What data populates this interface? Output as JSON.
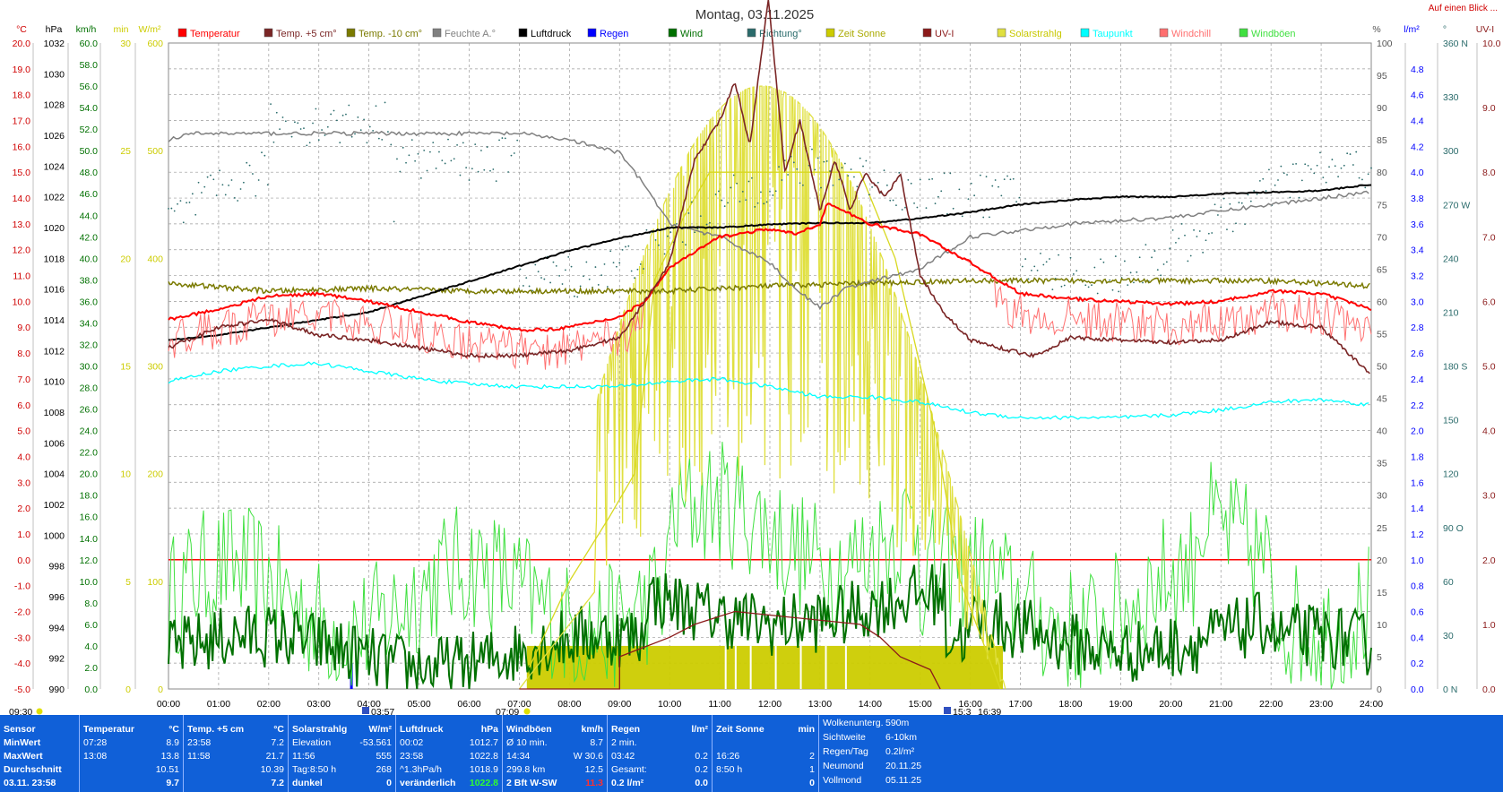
{
  "title": "Montag, 03.11.2025",
  "link_text": "Auf einen Blick ...",
  "colors": {
    "temp": "#ff0000",
    "temp5": "#7a2525",
    "temp10": "#7a7a00",
    "hum": "#808080",
    "press": "#000000",
    "rain": "#0000ff",
    "wind": "#007000",
    "dir": "#2a6b6b",
    "sun": "#cccc00",
    "uv": "#8b1a1a",
    "solar": "#e0e040",
    "dew": "#00ffff",
    "chill": "#ff7070",
    "gust": "#40e040"
  },
  "legend": [
    {
      "label": "Temperatur",
      "color": "#ff0000"
    },
    {
      "label": "Temp. +5 cm°",
      "color": "#7a2525"
    },
    {
      "label": "Temp. -10 cm°",
      "color": "#7a7a00"
    },
    {
      "label": "Feuchte A.°",
      "color": "#808080"
    },
    {
      "label": "Luftdruck",
      "color": "#000000"
    },
    {
      "label": "Regen",
      "color": "#0000ff"
    },
    {
      "label": "Wind",
      "color": "#007000"
    },
    {
      "label": "Richtung°",
      "color": "#2a6b6b"
    },
    {
      "label": "Zeit Sonne",
      "color": "#cccc00"
    },
    {
      "label": "UV-I",
      "color": "#8b1a1a"
    },
    {
      "label": "Solarstrahlg",
      "color": "#e0e040"
    },
    {
      "label": "Taupunkt",
      "color": "#00ffff"
    },
    {
      "label": "Windchill",
      "color": "#ff7070"
    },
    {
      "label": "Windböen",
      "color": "#40e040"
    }
  ],
  "chart_data": {
    "type": "line",
    "title": "Montag, 03.11.2025",
    "x_ticks": [
      "00:00",
      "01:00",
      "02:00",
      "03:00",
      "04:00",
      "05:00",
      "06:00",
      "07:00",
      "08:00",
      "09:00",
      "10:00",
      "11:00",
      "12:00",
      "13:00",
      "14:00",
      "15:00",
      "16:00",
      "17:00",
      "18:00",
      "19:00",
      "20:00",
      "21:00",
      "22:00",
      "23:00",
      "24:00"
    ],
    "axes": {
      "temp_c": {
        "unit": "°C",
        "range": [
          -5,
          20
        ],
        "ticks": [
          "20.0",
          "19.0",
          "18.0",
          "17.0",
          "16.0",
          "15.0",
          "14.0",
          "13.0",
          "12.0",
          "11.0",
          "10.0",
          "9.0",
          "8.0",
          "7.0",
          "6.0",
          "5.0",
          "4.0",
          "3.0",
          "2.0",
          "1.0",
          "0.0",
          "-1.0",
          "-2.0",
          "-3.0",
          "-4.0",
          "-5.0"
        ]
      },
      "pressure_hpa": {
        "unit": "hPa",
        "range": [
          990,
          1032
        ],
        "ticks": [
          "1032",
          "1030",
          "1028",
          "1026",
          "1024",
          "1022",
          "1020",
          "1018",
          "1016",
          "1014",
          "1012",
          "1010",
          "1008",
          "1006",
          "1004",
          "1002",
          "1000",
          "998",
          "996",
          "994",
          "992",
          "990"
        ]
      },
      "wind_kmh": {
        "unit": "km/h",
        "range": [
          0,
          60
        ],
        "ticks": [
          "60.0",
          "58.0",
          "56.0",
          "54.0",
          "52.0",
          "50.0",
          "48.0",
          "46.0",
          "44.0",
          "42.0",
          "40.0",
          "38.0",
          "36.0",
          "34.0",
          "32.0",
          "30.0",
          "28.0",
          "26.0",
          "24.0",
          "22.0",
          "20.0",
          "18.0",
          "16.0",
          "14.0",
          "12.0",
          "10.0",
          "8.0",
          "6.0",
          "4.0",
          "2.0",
          "0.0"
        ]
      },
      "sun_min": {
        "unit": "min",
        "range": [
          0,
          30
        ],
        "ticks": [
          "30",
          "25",
          "20",
          "15",
          "10",
          "5",
          "0"
        ]
      },
      "solar_wm2": {
        "unit": "W/m²",
        "range": [
          0,
          600
        ],
        "ticks": [
          "600",
          "500",
          "400",
          "300",
          "200",
          "100",
          "0"
        ]
      },
      "humidity_pct": {
        "unit": "%",
        "range": [
          0,
          100
        ],
        "ticks": [
          "100",
          "95",
          "90",
          "85",
          "80",
          "75",
          "70",
          "65",
          "60",
          "55",
          "50",
          "45",
          "40",
          "35",
          "30",
          "25",
          "20",
          "15",
          "10",
          "5",
          "0"
        ]
      },
      "rain_lm2": {
        "unit": "l/m²",
        "range": [
          0,
          5
        ],
        "ticks": [
          "4.8",
          "4.6",
          "4.4",
          "4.2",
          "4.0",
          "3.8",
          "3.6",
          "3.4",
          "3.2",
          "3.0",
          "2.8",
          "2.6",
          "2.4",
          "2.2",
          "2.0",
          "1.8",
          "1.6",
          "1.4",
          "1.2",
          "1.0",
          "0.8",
          "0.6",
          "0.4",
          "0.2",
          "0.0"
        ]
      },
      "direction_deg": {
        "unit": "°",
        "range": [
          0,
          360
        ],
        "ticks": [
          "360 N",
          "330",
          "300",
          "270 W",
          "240",
          "210",
          "180 S",
          "150",
          "120",
          "90 O",
          "60",
          "30",
          "0 N"
        ]
      },
      "uv": {
        "unit": "UV-I",
        "range": [
          0,
          10
        ],
        "ticks": [
          "10.0",
          "9.0",
          "8.0",
          "7.0",
          "6.0",
          "5.0",
          "4.0",
          "3.0",
          "2.0",
          "1.0",
          "0.0"
        ]
      }
    },
    "series": [
      {
        "name": "Temperatur",
        "axis": "temp_c",
        "x": [
          0,
          1,
          2,
          3,
          4,
          5,
          6,
          7,
          7.47,
          8,
          9,
          9.5,
          10,
          11,
          12,
          12.5,
          13,
          13.14,
          14,
          15,
          16,
          17,
          18,
          19,
          20,
          21,
          22,
          23,
          24
        ],
        "y": [
          9.3,
          9.7,
          10.2,
          10.3,
          10.0,
          9.6,
          9.2,
          8.9,
          8.9,
          9.0,
          9.4,
          10.0,
          11.3,
          12.5,
          12.8,
          12.6,
          13.0,
          13.8,
          13.0,
          12.6,
          11.5,
          10.3,
          10.1,
          10.0,
          9.9,
          10.0,
          10.4,
          10.3,
          9.7
        ]
      },
      {
        "name": "Temp. +5 cm°",
        "axis": "temp_c",
        "x": [
          0,
          1,
          2,
          3,
          4,
          5,
          6,
          7,
          8,
          9,
          9.5,
          10,
          10.5,
          11,
          11.3,
          11.6,
          11.97,
          12.3,
          12.6,
          13,
          13.3,
          13.6,
          13.9,
          14.3,
          14.6,
          15,
          15.5,
          16,
          17,
          17.3,
          18,
          19,
          20,
          21,
          22,
          23,
          23.97
        ],
        "y": [
          8.2,
          9.0,
          9.3,
          8.7,
          8.5,
          8.2,
          7.9,
          7.9,
          8.1,
          8.6,
          10.0,
          11.5,
          15.5,
          17.0,
          18.5,
          16.0,
          21.7,
          15.0,
          17.0,
          13.5,
          15.5,
          13.5,
          15.0,
          14.0,
          15.0,
          11.0,
          9.5,
          8.5,
          8.0,
          7.9,
          8.6,
          8.5,
          8.4,
          8.5,
          9.2,
          9.0,
          7.2
        ]
      },
      {
        "name": "Temp. -10 cm°",
        "axis": "temp_c",
        "x": [
          0,
          2,
          4,
          6,
          8,
          9,
          10,
          12,
          14,
          16,
          18,
          20,
          22,
          24
        ],
        "y": [
          10.7,
          10.4,
          10.5,
          10.4,
          10.4,
          10.4,
          10.4,
          10.6,
          10.7,
          10.8,
          10.8,
          10.8,
          10.8,
          10.6
        ]
      },
      {
        "name": "Feuchte A.°",
        "axis": "humidity_pct",
        "x": [
          0,
          0.5,
          1,
          3,
          5,
          7,
          8,
          8.5,
          9,
          9.5,
          10,
          11,
          12,
          12.5,
          13,
          13.5,
          14,
          15,
          16,
          17,
          18,
          20,
          22,
          23,
          24
        ],
        "y": [
          85,
          86,
          86,
          86,
          86,
          86,
          85,
          84,
          83,
          78,
          72,
          70,
          66,
          62,
          59,
          62,
          63,
          65,
          70,
          71,
          72,
          73,
          75,
          76,
          77
        ]
      },
      {
        "name": "Luftdruck",
        "axis": "pressure_hpa",
        "x": [
          0,
          1,
          2,
          3,
          4,
          5,
          6,
          7,
          8,
          9,
          10,
          11,
          12,
          13,
          14,
          15,
          16,
          17,
          18,
          19,
          20,
          21,
          22,
          23,
          24
        ],
        "y": [
          1012.7,
          1013.0,
          1013.5,
          1014.0,
          1014.5,
          1015.5,
          1016.5,
          1017.5,
          1018.5,
          1019.3,
          1020.0,
          1020.0,
          1020.2,
          1020.3,
          1020.3,
          1020.6,
          1021.0,
          1021.5,
          1021.8,
          1022.0,
          1022.0,
          1022.2,
          1022.3,
          1022.4,
          1022.8
        ]
      },
      {
        "name": "Taupunkt",
        "axis": "temp_c",
        "x": [
          0,
          1,
          2,
          3,
          4,
          5,
          6,
          7,
          8,
          9,
          10,
          11,
          12,
          13,
          14,
          15,
          16,
          17,
          18,
          19,
          20,
          21,
          22,
          23,
          24
        ],
        "y": [
          6.9,
          7.3,
          7.5,
          7.6,
          7.3,
          7.0,
          6.8,
          6.7,
          6.7,
          6.7,
          6.9,
          7.0,
          6.7,
          6.3,
          6.3,
          6.1,
          5.7,
          5.5,
          5.5,
          5.5,
          5.6,
          5.8,
          6.1,
          6.2,
          6.0
        ]
      }
    ],
    "annotations": [
      "09:30",
      "03:57",
      "07:09",
      "15:3",
      "16:39"
    ],
    "rain_marker_time": "03:40"
  },
  "summary": {
    "sensor": {
      "header": "Sensor",
      "rows": [
        "MinWert",
        "MaxWert",
        "Durchschnitt",
        "03.11. 23:58"
      ]
    },
    "temperatur": {
      "header": "Temperatur",
      "unit": "°C",
      "rows": [
        [
          "07:28",
          "8.9"
        ],
        [
          "13:08",
          "13.8"
        ],
        [
          "",
          "10.51"
        ],
        [
          "",
          "9.7"
        ]
      ]
    },
    "temp5": {
      "header": "Temp. +5 cm",
      "unit": "°C",
      "rows": [
        [
          "23:58",
          "7.2"
        ],
        [
          "11:58",
          "21.7"
        ],
        [
          "",
          "10.39"
        ],
        [
          "",
          "7.2"
        ]
      ]
    },
    "solar": {
      "header": "Solarstrahlg",
      "unit": "W/m²",
      "rows": [
        [
          "Elevation",
          "-53.561"
        ],
        [
          "11:56",
          "555"
        ],
        [
          "Tag:8:50 h",
          "268"
        ],
        [
          "dunkel",
          "0"
        ]
      ]
    },
    "luftdruck": {
      "header": "Luftdruck",
      "unit": "hPa",
      "rows": [
        [
          "00:02",
          "1012.7"
        ],
        [
          "23:58",
          "1022.8"
        ],
        [
          "^1.3hPa/h",
          "1018.9"
        ],
        [
          "veränderlich",
          "1022.8"
        ]
      ]
    },
    "wind": {
      "header": "Windböen",
      "unit": "km/h",
      "rows": [
        [
          "Ø 10 min.",
          "8.7"
        ],
        [
          "14:34",
          "W 30.6"
        ],
        [
          "299.8 km",
          "12.5"
        ],
        [
          "2 Bft W-SW",
          "11.3"
        ]
      ]
    },
    "regen": {
      "header": "Regen",
      "unit": "l/m²",
      "rows": [
        [
          "2 min.",
          ""
        ],
        [
          "03:42",
          "0.2"
        ],
        [
          "Gesamt:",
          "0.2"
        ],
        [
          "0.2 l/m²",
          "0.0"
        ]
      ]
    },
    "sonne": {
      "header": "Zeit Sonne",
      "unit": "min",
      "rows": [
        [
          "",
          ""
        ],
        [
          "16:26",
          "2"
        ],
        [
          "8:50 h",
          "1"
        ],
        [
          "",
          "0"
        ]
      ]
    },
    "extra": {
      "rows": [
        [
          "Wolkenunterg.",
          "590m"
        ],
        [
          "Sichtweite",
          "6-10km"
        ],
        [
          "Regen/Tag",
          "0.2l/m²"
        ],
        [
          "Neumond",
          "20.11.25"
        ],
        [
          "Vollmond",
          "05.11.25"
        ]
      ]
    }
  }
}
